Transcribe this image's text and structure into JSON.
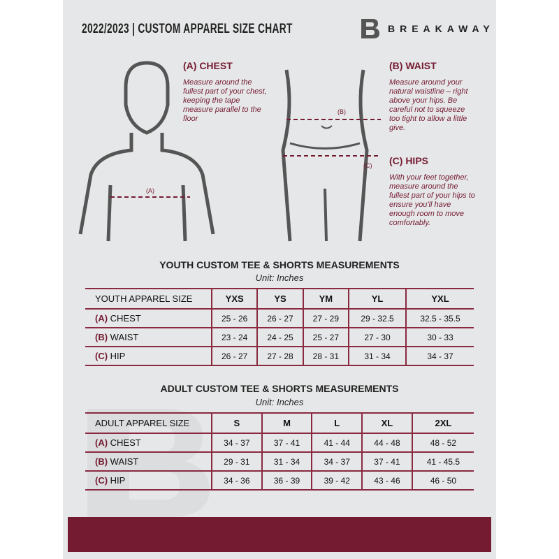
{
  "header": {
    "title": "2022/2023  |  CUSTOM APPAREL SIZE CHART",
    "brand": "BREAKAWAY",
    "logo_letter": "B"
  },
  "guides": {
    "chest": {
      "title": "(A) CHEST",
      "text": "Measure around the fullest part of your chest, keeping the tape measure parallel to the floor",
      "marker": "(A)"
    },
    "waist": {
      "title": "(B) WAIST",
      "text": "Measure around your natural waistline – right above your hips. Be careful not to squeeze too tight to allow a little give.",
      "marker": "(B)"
    },
    "hips": {
      "title": "(C) HIPS",
      "text": "With your feet together, measure around the fullest part of your hips to ensure you'll have enough room to move comfortably.",
      "marker": "(C)"
    }
  },
  "youth": {
    "title": "YOUTH CUSTOM TEE & SHORTS MEASUREMENTS",
    "unit": "Unit: Inches",
    "size_label": "YOUTH APPAREL SIZE",
    "sizes": [
      "YXS",
      "YS",
      "YM",
      "YL",
      "YXL"
    ],
    "rows": [
      {
        "letter": "(A)",
        "name": "CHEST",
        "values": [
          "25 - 26",
          "26 - 27",
          "27 - 29",
          "29 - 32.5",
          "32.5 - 35.5"
        ]
      },
      {
        "letter": "(B)",
        "name": "WAIST",
        "values": [
          "23 - 24",
          "24 - 25",
          "25 - 27",
          "27 - 30",
          "30 - 33"
        ]
      },
      {
        "letter": "(C)",
        "name": "HIP",
        "values": [
          "26 - 27",
          "27 - 28",
          "28 - 31",
          "31 - 34",
          "34 - 37"
        ]
      }
    ]
  },
  "adult": {
    "title": "ADULT CUSTOM TEE & SHORTS MEASUREMENTS",
    "unit": "Unit: Inches",
    "size_label": "ADULT APPAREL SIZE",
    "sizes": [
      "S",
      "M",
      "L",
      "XL",
      "2XL"
    ],
    "rows": [
      {
        "letter": "(A)",
        "name": "CHEST",
        "values": [
          "34 - 37",
          "37 - 41",
          "41 - 44",
          "44 - 48",
          "48 - 52"
        ]
      },
      {
        "letter": "(B)",
        "name": "WAIST",
        "values": [
          "29 - 31",
          "31 - 34",
          "34 - 37",
          "37 - 41",
          "41 - 45.5"
        ]
      },
      {
        "letter": "(C)",
        "name": "HIP",
        "values": [
          "34 - 36",
          "36 - 39",
          "39 - 42",
          "43 - 46",
          "46 - 50"
        ]
      }
    ]
  },
  "colors": {
    "accent": "#741b32",
    "background": "#e6e7e8"
  }
}
